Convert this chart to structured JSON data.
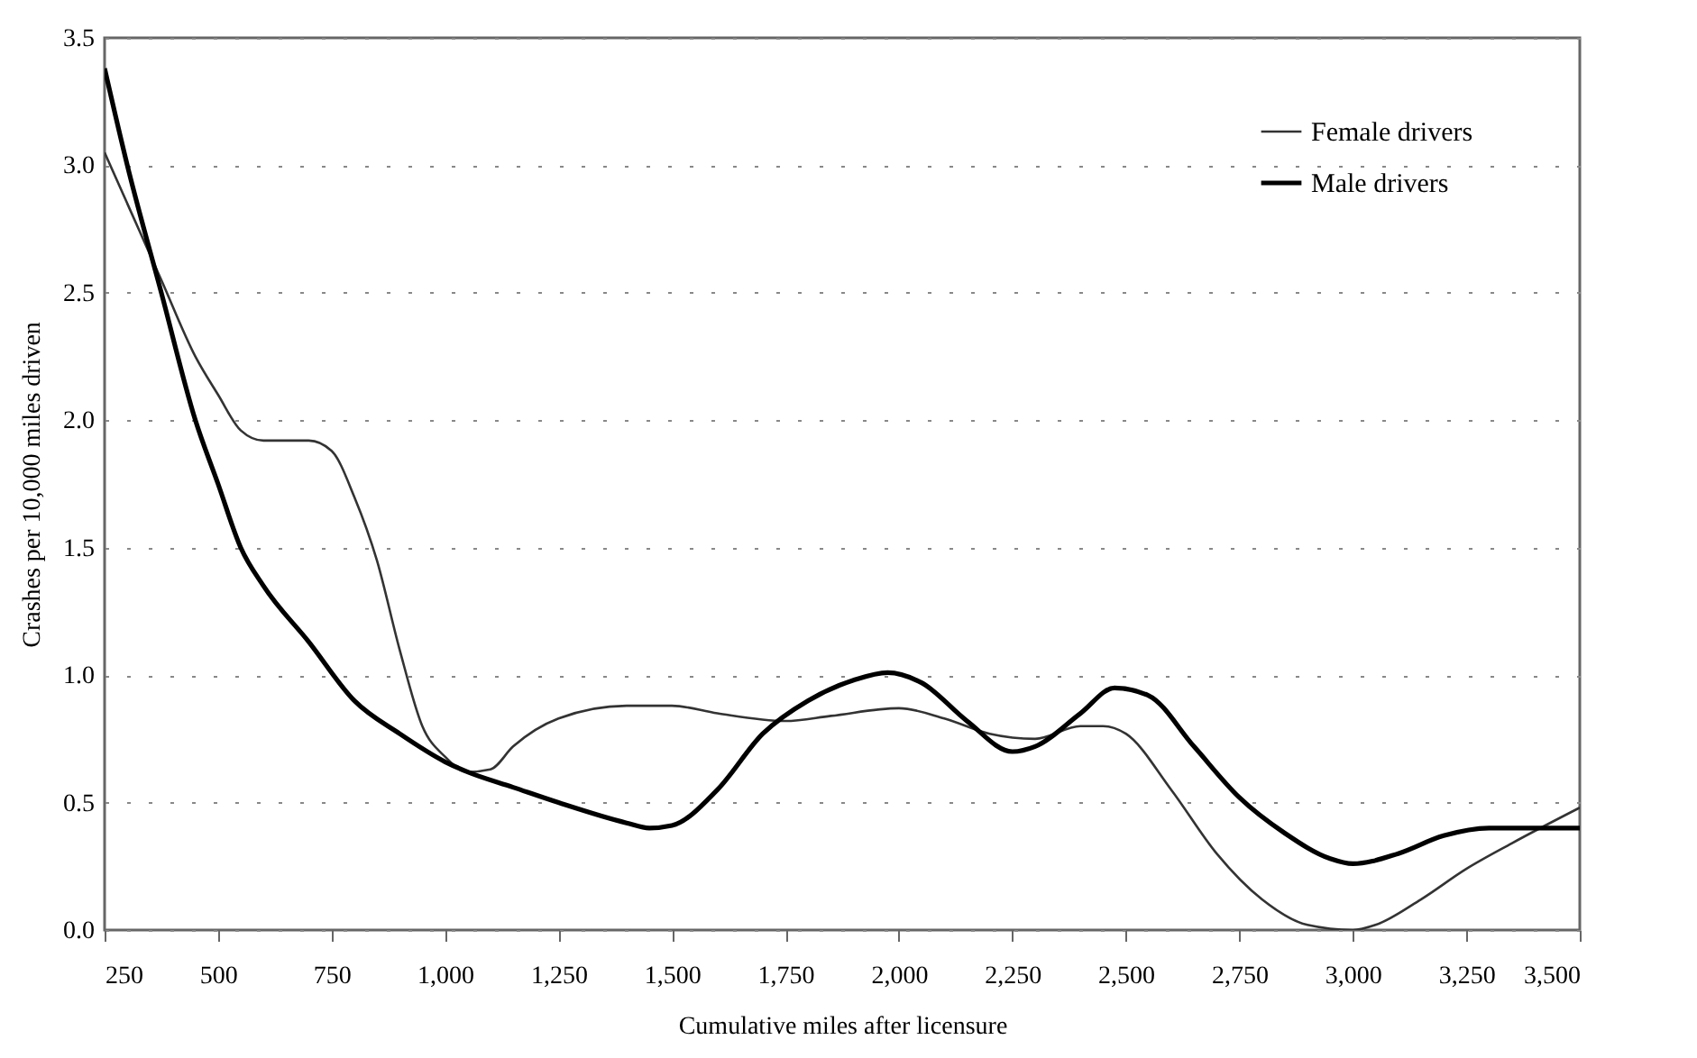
{
  "chart_data": {
    "type": "line",
    "xlabel": "Cumulative miles after licensure",
    "ylabel": "Crashes per 10,000 miles driven",
    "xlim": [
      250,
      3500
    ],
    "xticks": [
      250,
      500,
      750,
      {
        "value": 1000,
        "label": "1,000"
      },
      {
        "value": 1250,
        "label": "1,250"
      },
      {
        "value": 1500,
        "label": "1,500"
      },
      {
        "value": 1750,
        "label": "1,750"
      },
      {
        "value": 2000,
        "label": "2,000"
      },
      {
        "value": 2250,
        "label": "2,250"
      },
      {
        "value": 2500,
        "label": "2,500"
      },
      {
        "value": 2750,
        "label": "2,750"
      },
      {
        "value": 3000,
        "label": "3,000"
      },
      {
        "value": 3250,
        "label": "3,250"
      },
      {
        "value": 3500,
        "label": "3,500"
      }
    ],
    "ylim": [
      0,
      3.5
    ],
    "yticks": [
      {
        "value": 0,
        "label": "0.0"
      },
      {
        "value": 0.5,
        "label": "0.5"
      },
      {
        "value": 1,
        "label": "1.0"
      },
      {
        "value": 1.5,
        "label": "1.5"
      },
      {
        "value": 2,
        "label": "2.0"
      },
      {
        "value": 2.5,
        "label": "2.5"
      },
      {
        "value": 3,
        "label": "3.0"
      },
      {
        "value": 3.5,
        "label": "3.5"
      }
    ],
    "grid": "y",
    "legend": "top right",
    "line_style": "solid",
    "series": [
      {
        "name": "Female drivers",
        "color": "#333333",
        "x": [
          250,
          300,
          375,
          450,
          500,
          550,
          600,
          700,
          750,
          800,
          850,
          900,
          950,
          1000,
          1050,
          1100,
          1150,
          1250,
          1400,
          1500,
          1600,
          1750,
          1850,
          2000,
          2100,
          2200,
          2300,
          2400,
          2450,
          2500,
          2600,
          2700,
          2800,
          2900,
          3000,
          3050,
          3150,
          3250,
          3350,
          3500
        ],
        "values": [
          3.05,
          2.85,
          2.55,
          2.25,
          2.1,
          1.96,
          1.92,
          1.92,
          1.88,
          1.7,
          1.45,
          1.1,
          0.8,
          0.68,
          0.62,
          0.63,
          0.72,
          0.83,
          0.88,
          0.88,
          0.85,
          0.82,
          0.84,
          0.87,
          0.83,
          0.77,
          0.75,
          0.8,
          0.8,
          0.77,
          0.55,
          0.3,
          0.12,
          0.02,
          0.0,
          0.02,
          0.12,
          0.24,
          0.34,
          0.48
        ]
      },
      {
        "name": "Male drivers",
        "color": "#000000",
        "x": [
          250,
          300,
          375,
          450,
          500,
          550,
          600,
          700,
          800,
          900,
          1000,
          1050,
          1150,
          1250,
          1400,
          1450,
          1500,
          1600,
          1700,
          1800,
          1900,
          1975,
          2050,
          2150,
          2250,
          2300,
          2400,
          2475,
          2550,
          2650,
          2750,
          2850,
          2950,
          3000,
          3100,
          3200,
          3300,
          3500
        ],
        "values": [
          3.38,
          3.0,
          2.5,
          2.0,
          1.75,
          1.5,
          1.35,
          1.13,
          0.9,
          0.77,
          0.66,
          0.62,
          0.56,
          0.5,
          0.42,
          0.4,
          0.41,
          0.55,
          0.77,
          0.9,
          0.98,
          1.01,
          0.97,
          0.82,
          0.7,
          0.72,
          0.85,
          0.95,
          0.92,
          0.72,
          0.52,
          0.38,
          0.28,
          0.26,
          0.3,
          0.37,
          0.4,
          0.4
        ]
      }
    ]
  }
}
